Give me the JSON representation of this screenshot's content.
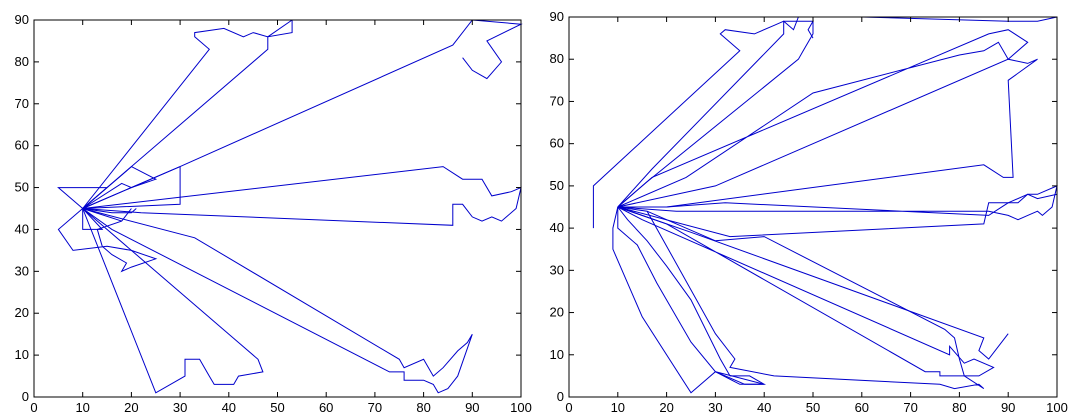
{
  "chart_data": [
    {
      "type": "line",
      "title": "",
      "xlabel": "",
      "ylabel": "",
      "xlim": [
        0,
        100
      ],
      "ylim": [
        0,
        90
      ],
      "xticks": [
        0,
        10,
        20,
        30,
        40,
        50,
        60,
        70,
        80,
        90,
        100
      ],
      "yticks": [
        0,
        10,
        20,
        30,
        40,
        50,
        60,
        70,
        80,
        90
      ],
      "grid": false,
      "color": "#0000cc",
      "series": [
        {
          "points": [
            [
              10,
              45
            ],
            [
              36,
              83
            ],
            [
              33,
              86
            ],
            [
              33,
              87
            ],
            [
              39,
              88
            ],
            [
              43,
              86
            ],
            [
              45,
              87
            ],
            [
              48,
              86
            ],
            [
              53,
              90
            ]
          ]
        },
        {
          "points": [
            [
              10,
              45
            ],
            [
              48,
              83
            ],
            [
              48,
              86
            ],
            [
              53,
              87
            ],
            [
              53,
              90
            ]
          ]
        },
        {
          "points": [
            [
              10,
              45
            ],
            [
              30,
              55
            ],
            [
              86,
              84
            ],
            [
              90,
              90
            ],
            [
              100,
              89
            ],
            [
              93,
              85
            ],
            [
              96,
              80
            ],
            [
              93,
              76
            ],
            [
              90,
              78
            ],
            [
              88,
              81
            ]
          ]
        },
        {
          "points": [
            [
              10,
              45
            ],
            [
              30,
              55
            ],
            [
              30,
              46
            ],
            [
              10,
              45
            ]
          ]
        },
        {
          "points": [
            [
              10,
              45
            ],
            [
              18,
              53
            ],
            [
              20,
              55
            ],
            [
              25,
              52
            ],
            [
              20,
              50
            ],
            [
              18,
              51
            ],
            [
              10,
              45
            ]
          ]
        },
        {
          "points": [
            [
              10,
              45
            ],
            [
              5,
              50
            ],
            [
              15,
              50
            ],
            [
              10,
              45
            ]
          ]
        },
        {
          "points": [
            [
              10,
              45
            ],
            [
              84,
              55
            ],
            [
              88,
              52
            ],
            [
              92,
              52
            ],
            [
              94,
              48
            ],
            [
              98,
              49
            ],
            [
              100,
              50
            ],
            [
              99,
              45
            ],
            [
              97,
              43
            ],
            [
              96,
              42
            ],
            [
              94,
              43
            ],
            [
              92,
              42
            ],
            [
              90,
              43
            ],
            [
              88,
              46
            ],
            [
              86,
              46
            ],
            [
              86,
              41
            ],
            [
              22,
              44
            ],
            [
              10,
              45
            ]
          ]
        },
        {
          "points": [
            [
              10,
              45
            ],
            [
              16,
              44
            ],
            [
              20,
              44
            ],
            [
              21,
              45
            ],
            [
              20,
              44
            ],
            [
              16,
              44
            ],
            [
              10,
              45
            ]
          ]
        },
        {
          "points": [
            [
              10,
              45
            ],
            [
              5,
              40
            ],
            [
              8,
              35
            ],
            [
              15,
              36
            ],
            [
              20,
              35
            ],
            [
              25,
              33
            ],
            [
              20,
              31
            ],
            [
              18,
              30
            ],
            [
              19,
              32
            ],
            [
              16,
              34
            ],
            [
              14,
              36
            ],
            [
              13,
              40
            ],
            [
              18,
              42
            ],
            [
              20,
              45
            ],
            [
              18,
              42
            ],
            [
              10,
              45
            ]
          ]
        },
        {
          "points": [
            [
              10,
              45
            ],
            [
              10,
              40
            ],
            [
              14,
              40
            ],
            [
              10,
              45
            ]
          ]
        },
        {
          "points": [
            [
              10,
              45
            ],
            [
              25,
              1
            ],
            [
              31,
              5
            ],
            [
              31,
              7
            ],
            [
              31,
              9
            ],
            [
              34,
              9
            ],
            [
              36,
              5
            ],
            [
              37,
              3
            ],
            [
              41,
              3
            ],
            [
              42,
              5
            ],
            [
              47,
              6
            ],
            [
              46,
              9
            ],
            [
              42,
              13
            ],
            [
              10,
              45
            ]
          ]
        },
        {
          "points": [
            [
              10,
              45
            ],
            [
              33,
              38
            ],
            [
              75,
              9
            ],
            [
              76,
              7
            ],
            [
              80,
              9
            ],
            [
              82,
              5
            ],
            [
              84,
              7
            ],
            [
              87,
              11
            ],
            [
              89,
              13
            ],
            [
              90,
              15
            ],
            [
              87,
              5
            ],
            [
              85,
              2
            ],
            [
              83,
              1
            ],
            [
              82,
              3
            ],
            [
              80,
              4
            ],
            [
              76,
              4
            ],
            [
              76,
              6
            ],
            [
              73,
              6
            ],
            [
              16,
              40
            ],
            [
              10,
              45
            ]
          ]
        }
      ]
    },
    {
      "type": "line",
      "title": "",
      "xlabel": "",
      "ylabel": "",
      "xlim": [
        0,
        100
      ],
      "ylim": [
        0,
        90
      ],
      "xticks": [
        0,
        10,
        20,
        30,
        40,
        50,
        60,
        70,
        80,
        90,
        100
      ],
      "yticks": [
        0,
        10,
        20,
        30,
        40,
        50,
        60,
        70,
        80,
        90
      ],
      "grid": false,
      "color": "#0000cc",
      "series": [
        {
          "points": [
            [
              5,
              40
            ],
            [
              5,
              50
            ],
            [
              35,
              82
            ],
            [
              31,
              86
            ],
            [
              32,
              87
            ],
            [
              38,
              86
            ],
            [
              42,
              88
            ],
            [
              44,
              89
            ],
            [
              46,
              87
            ],
            [
              47,
              90
            ]
          ]
        },
        {
          "points": [
            [
              10,
              45
            ],
            [
              17,
              54
            ],
            [
              44,
              86
            ],
            [
              44,
              89
            ],
            [
              50,
              89
            ],
            [
              49,
              87
            ],
            [
              50,
              85
            ]
          ]
        },
        {
          "points": [
            [
              10,
              45
            ],
            [
              16,
              51
            ],
            [
              47,
              80
            ],
            [
              48,
              82
            ],
            [
              50,
              86
            ],
            [
              50,
              90
            ],
            [
              60,
              90
            ],
            [
              90,
              89
            ],
            [
              96,
              89
            ],
            [
              100,
              90
            ]
          ]
        },
        {
          "points": [
            [
              10,
              45
            ],
            [
              17,
              52
            ],
            [
              86,
              86
            ],
            [
              90,
              87
            ],
            [
              94,
              84
            ],
            [
              90,
              80
            ],
            [
              88,
              84
            ],
            [
              85,
              82
            ],
            [
              80,
              81
            ],
            [
              50,
              72
            ],
            [
              24,
              52
            ],
            [
              10,
              45
            ]
          ]
        },
        {
          "points": [
            [
              10,
              45
            ],
            [
              30,
              50
            ],
            [
              40,
              55
            ],
            [
              90,
              80
            ],
            [
              94,
              79
            ],
            [
              96,
              80
            ],
            [
              90,
              75
            ],
            [
              91,
              52
            ],
            [
              89,
              52
            ],
            [
              85,
              55
            ],
            [
              20,
              45
            ],
            [
              10,
              45
            ]
          ]
        },
        {
          "points": [
            [
              10,
              45
            ],
            [
              20,
              45
            ],
            [
              32,
              46
            ],
            [
              86,
              43
            ],
            [
              90,
              46
            ],
            [
              92,
              46
            ],
            [
              94,
              48
            ],
            [
              96,
              48
            ],
            [
              100,
              50
            ],
            [
              99,
              45
            ],
            [
              97,
              43
            ],
            [
              96,
              44
            ],
            [
              94,
              43
            ],
            [
              92,
              42
            ],
            [
              90,
              43
            ],
            [
              86,
              44
            ],
            [
              22,
              44
            ],
            [
              10,
              45
            ]
          ]
        },
        {
          "points": [
            [
              10,
              45
            ],
            [
              33,
              38
            ],
            [
              85,
              41
            ],
            [
              86,
              46
            ],
            [
              90,
              46
            ],
            [
              94,
              48
            ],
            [
              96,
              47
            ],
            [
              100,
              48
            ]
          ]
        },
        {
          "points": [
            [
              10,
              45
            ],
            [
              25,
              39
            ],
            [
              85,
              14
            ],
            [
              84,
              11
            ],
            [
              86,
              9
            ],
            [
              90,
              15
            ]
          ]
        },
        {
          "points": [
            [
              10,
              45
            ],
            [
              15,
              42
            ],
            [
              78,
              10
            ],
            [
              78,
              12
            ],
            [
              81,
              8
            ],
            [
              83,
              9
            ],
            [
              87,
              7
            ],
            [
              84,
              5
            ],
            [
              79,
              5
            ],
            [
              76,
              5
            ],
            [
              76,
              6
            ],
            [
              73,
              6
            ],
            [
              20,
              41
            ],
            [
              10,
              45
            ]
          ]
        },
        {
          "points": [
            [
              10,
              45
            ],
            [
              16,
              44
            ],
            [
              20,
              42
            ],
            [
              30,
              37
            ],
            [
              40,
              38
            ],
            [
              77,
              16
            ],
            [
              79,
              14
            ],
            [
              80,
              9
            ],
            [
              81,
              5
            ],
            [
              85,
              2
            ],
            [
              84,
              3
            ],
            [
              79,
              2
            ],
            [
              76,
              3
            ],
            [
              42,
              5
            ],
            [
              33,
              7
            ],
            [
              34,
              9
            ],
            [
              30,
              15
            ],
            [
              16,
              44
            ],
            [
              10,
              45
            ]
          ]
        },
        {
          "points": [
            [
              10,
              45
            ],
            [
              12,
              42
            ],
            [
              16,
              37
            ],
            [
              18,
              34
            ],
            [
              20,
              31
            ],
            [
              25,
              23
            ],
            [
              31,
              9
            ],
            [
              33,
              5
            ],
            [
              37,
              5
            ],
            [
              40,
              3
            ],
            [
              35,
              3
            ],
            [
              30,
              6
            ],
            [
              25,
              13
            ],
            [
              18,
              27
            ],
            [
              14,
              36
            ],
            [
              10,
              40
            ],
            [
              10,
              45
            ]
          ]
        },
        {
          "points": [
            [
              10,
              45
            ],
            [
              9,
              40
            ],
            [
              9,
              35
            ],
            [
              15,
              19
            ],
            [
              25,
              1
            ],
            [
              30,
              6
            ],
            [
              36,
              3
            ],
            [
              40,
              3
            ],
            [
              30,
              6
            ],
            [
              25,
              1
            ]
          ]
        }
      ]
    }
  ]
}
